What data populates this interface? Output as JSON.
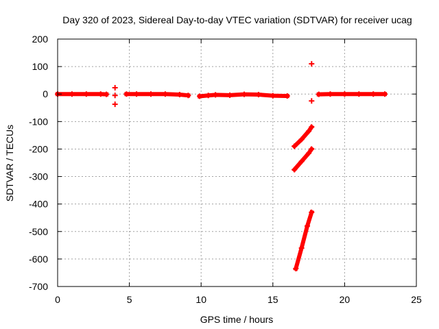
{
  "chart_data": {
    "type": "scatter",
    "title": "Day 320 of 2023, Sidereal Day-to-day VTEC variation (SDTVAR) for receiver ucag",
    "xlabel": "GPS time / hours",
    "ylabel": "SDTVAR / TECUs",
    "xlim": [
      0,
      25
    ],
    "ylim": [
      -700,
      200
    ],
    "xticks": [
      0,
      5,
      10,
      15,
      20,
      25
    ],
    "yticks": [
      -700,
      -600,
      -500,
      -400,
      -300,
      -200,
      -100,
      0,
      100,
      200
    ],
    "grid": true,
    "marker_color": "#ff0000",
    "segments": [
      {
        "x": [
          0.0,
          1.0,
          2.0,
          3.0,
          3.4
        ],
        "y": [
          0,
          0,
          0,
          0,
          -1
        ]
      },
      {
        "x": [
          4.0
        ],
        "y": [
          23
        ]
      },
      {
        "x": [
          4.0
        ],
        "y": [
          -5
        ]
      },
      {
        "x": [
          4.0
        ],
        "y": [
          -37
        ]
      },
      {
        "x": [
          4.8,
          5.5,
          6.5,
          7.5,
          8.5,
          9.1
        ],
        "y": [
          0,
          0,
          0,
          0,
          -2,
          -5
        ]
      },
      {
        "x": [
          9.9,
          10.5,
          11.0,
          12.0,
          13.0,
          14.0,
          15.0,
          16.0
        ],
        "y": [
          -8,
          -5,
          -3,
          -4,
          -1,
          -2,
          -6,
          -7
        ]
      },
      {
        "x": [
          16.5,
          17.0,
          17.5,
          17.7
        ],
        "y": [
          -190,
          -165,
          -135,
          -120
        ]
      },
      {
        "x": [
          16.5,
          17.0,
          17.5,
          17.7
        ],
        "y": [
          -275,
          -245,
          -215,
          -200
        ]
      },
      {
        "x": [
          16.6,
          17.0,
          17.4,
          17.7
        ],
        "y": [
          -635,
          -560,
          -480,
          -430
        ]
      },
      {
        "x": [
          17.7
        ],
        "y": [
          110
        ]
      },
      {
        "x": [
          17.7
        ],
        "y": [
          -25
        ]
      },
      {
        "x": [
          18.2,
          19.0,
          20.0,
          21.0,
          22.0,
          22.8
        ],
        "y": [
          -1,
          0,
          0,
          0,
          0,
          0
        ]
      }
    ]
  }
}
